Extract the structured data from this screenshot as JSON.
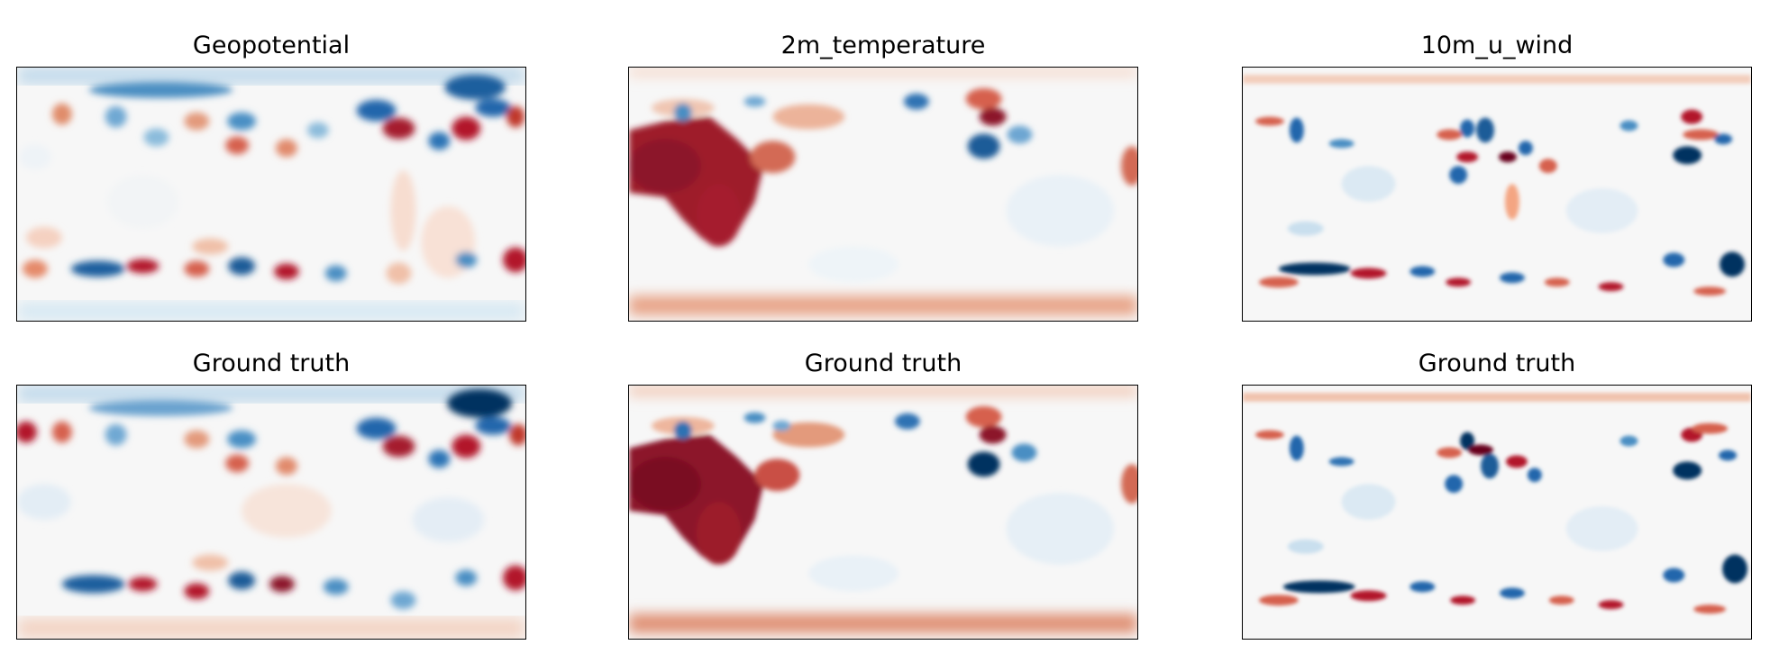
{
  "figure": {
    "colors": {
      "cold_dark": "#053061",
      "cold_mid": "#2166ac",
      "cold_light": "#4393c3",
      "cold_pale": "#92c5de",
      "neutral": "#f7f7f7",
      "warm_pale": "#f4a582",
      "warm_light": "#d6604d",
      "warm_mid": "#b2182b",
      "warm_dark": "#67001f"
    },
    "colormap": "RdBu_r",
    "axes_ticks": "none"
  },
  "chart_data": [
    {
      "type": "heatmap",
      "title": "Geopotential",
      "row": "prediction",
      "variable": "Geopotential"
    },
    {
      "type": "heatmap",
      "title": "2m_temperature",
      "row": "prediction",
      "variable": "2m_temperature"
    },
    {
      "type": "heatmap",
      "title": "10m_u_wind",
      "row": "prediction",
      "variable": "10m_u_wind"
    },
    {
      "type": "heatmap",
      "title": "Ground truth",
      "row": "ground_truth",
      "variable": "Geopotential"
    },
    {
      "type": "heatmap",
      "title": "Ground truth",
      "row": "ground_truth",
      "variable": "2m_temperature"
    },
    {
      "type": "heatmap",
      "title": "Ground truth",
      "row": "ground_truth",
      "variable": "10m_u_wind"
    }
  ]
}
